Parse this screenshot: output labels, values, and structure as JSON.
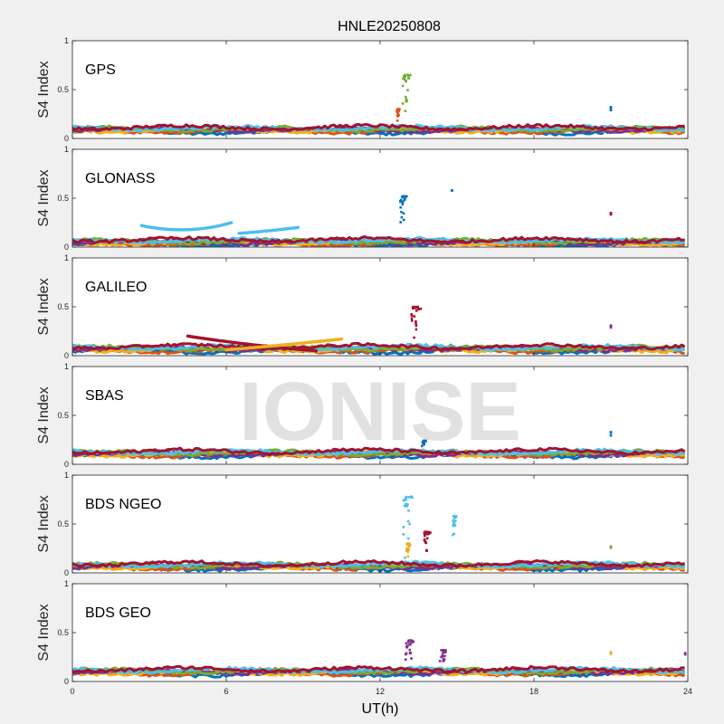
{
  "chart_data": {
    "type": "scatter",
    "title": "HNLE20250808",
    "xlabel": "UT(h)",
    "ylabel": "S4 Index",
    "xlim": [
      0,
      24
    ],
    "ylim": [
      0,
      1
    ],
    "xticks": [
      "0",
      "6",
      "12",
      "18",
      "24"
    ],
    "yticks": [
      "0",
      "0.5",
      "1"
    ],
    "watermark": "IONISE",
    "colors": [
      "#0072bd",
      "#d95319",
      "#edb120",
      "#7e2f8e",
      "#77ac30",
      "#4dbeee",
      "#a2142f"
    ],
    "panels": [
      {
        "name": "GPS",
        "baseline": 0.09,
        "spikes": [
          {
            "x": [
              12.8,
              13.2
            ],
            "y": [
              0.2,
              0.65
            ],
            "color": 4
          },
          {
            "x": [
              12.6,
              12.8
            ],
            "y": [
              0.15,
              0.3
            ],
            "color": 1
          },
          {
            "x": [
              21.0,
              21.0
            ],
            "y": [
              0.28,
              0.32
            ],
            "color": 0
          }
        ]
      },
      {
        "name": "GLONASS",
        "baseline": 0.05,
        "arcs": [
          {
            "x": [
              2.7,
              4.5,
              6.2
            ],
            "y": [
              0.22,
              0.12,
              0.25
            ],
            "color": 5
          },
          {
            "x": [
              6.5,
              7.5,
              8.8
            ],
            "y": [
              0.14,
              0.16,
              0.2
            ],
            "color": 5
          }
        ],
        "spikes": [
          {
            "x": [
              12.7,
              13.1
            ],
            "y": [
              0.1,
              0.52
            ],
            "color": 0
          },
          {
            "x": [
              14.8,
              14.8
            ],
            "y": [
              0.58,
              0.58
            ],
            "color": 0
          },
          {
            "x": [
              21.0,
              21.0
            ],
            "y": [
              0.32,
              0.35
            ],
            "color": 6
          }
        ]
      },
      {
        "name": "GALILEO",
        "baseline": 0.07,
        "arcs": [
          {
            "x": [
              4.5,
              7.0,
              9.5
            ],
            "y": [
              0.2,
              0.1,
              0.05
            ],
            "color": 6
          },
          {
            "x": [
              6.0,
              8.0,
              10.5
            ],
            "y": [
              0.06,
              0.1,
              0.17
            ],
            "color": 2
          }
        ],
        "spikes": [
          {
            "x": [
              13.1,
              13.7
            ],
            "y": [
              0.15,
              0.5
            ],
            "color": 6
          },
          {
            "x": [
              21.0,
              21.0
            ],
            "y": [
              0.28,
              0.31
            ],
            "color": 3
          }
        ]
      },
      {
        "name": "SBAS",
        "baseline": 0.11,
        "spikes": [
          {
            "x": [
              13.6,
              13.8
            ],
            "y": [
              0.18,
              0.24
            ],
            "color": 0
          },
          {
            "x": [
              21.0,
              21.0
            ],
            "y": [
              0.29,
              0.33
            ],
            "color": 0
          }
        ]
      },
      {
        "name": "BDS NGEO",
        "baseline": 0.07,
        "spikes": [
          {
            "x": [
              12.8,
              13.3
            ],
            "y": [
              0.15,
              0.78
            ],
            "color": 5
          },
          {
            "x": [
              13.6,
              14.0
            ],
            "y": [
              0.2,
              0.42
            ],
            "color": 6
          },
          {
            "x": [
              14.8,
              15.0
            ],
            "y": [
              0.35,
              0.58
            ],
            "color": 5
          },
          {
            "x": [
              13.0,
              13.2
            ],
            "y": [
              0.15,
              0.3
            ],
            "color": 2
          },
          {
            "x": [
              21.0,
              21.0
            ],
            "y": [
              0.24,
              0.27
            ],
            "color": 4
          }
        ]
      },
      {
        "name": "BDS GEO",
        "baseline": 0.1,
        "spikes": [
          {
            "x": [
              12.9,
              13.4
            ],
            "y": [
              0.15,
              0.42
            ],
            "color": 3
          },
          {
            "x": [
              14.3,
              14.6
            ],
            "y": [
              0.15,
              0.32
            ],
            "color": 3
          },
          {
            "x": [
              21.0,
              21.0
            ],
            "y": [
              0.26,
              0.3
            ],
            "color": 2
          },
          {
            "x": [
              23.9,
              23.9
            ],
            "y": [
              0.26,
              0.29
            ],
            "color": 3
          }
        ]
      }
    ]
  }
}
